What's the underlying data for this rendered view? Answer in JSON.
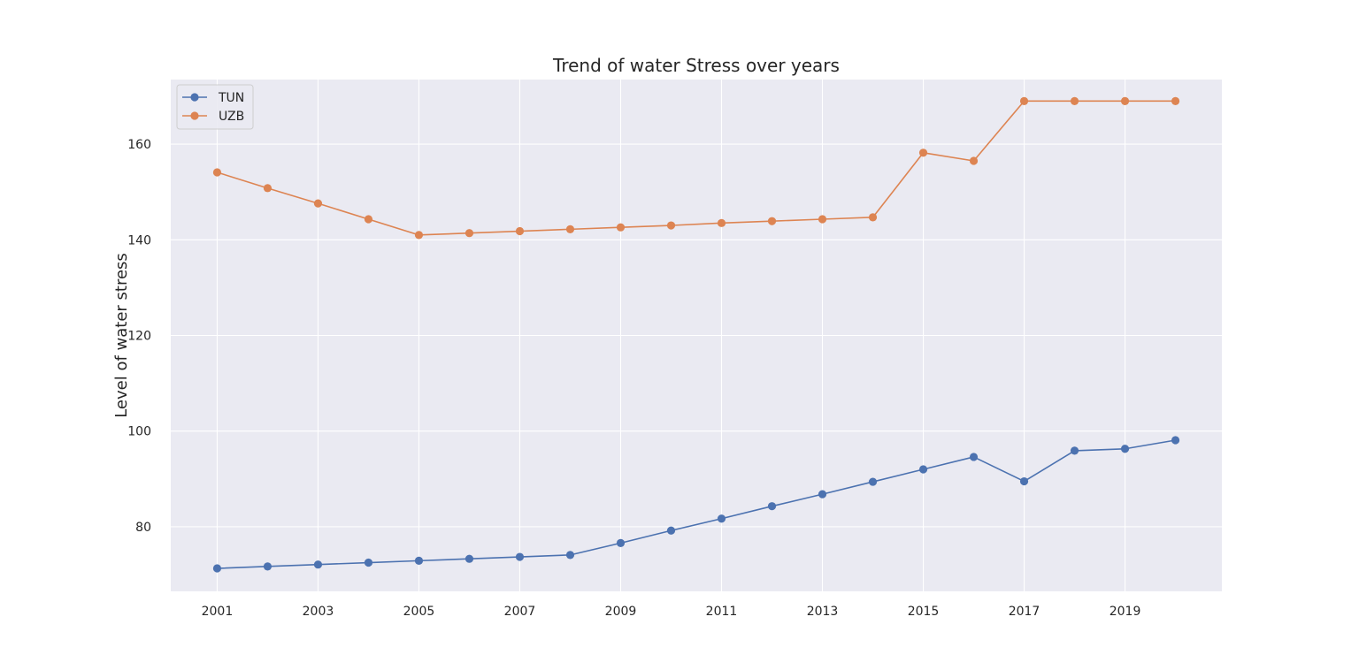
{
  "colors": {
    "plot_background": "#EAEAF2",
    "grid": "#FFFFFF",
    "tun": "#4C72B0",
    "uzb": "#DD8452",
    "text": "#262626"
  },
  "chart_data": {
    "type": "line",
    "title": "Trend of water Stress over years",
    "xlabel": "",
    "ylabel": "Level of water stress",
    "x": [
      2001,
      2002,
      2003,
      2004,
      2005,
      2006,
      2007,
      2008,
      2009,
      2010,
      2011,
      2012,
      2013,
      2014,
      2015,
      2016,
      2017,
      2018,
      2019,
      2020
    ],
    "xlim": [
      2000.08,
      2020.92
    ],
    "ylim": [
      66.5,
      173.5
    ],
    "xticks": [
      2001,
      2003,
      2005,
      2007,
      2009,
      2011,
      2013,
      2015,
      2017,
      2019
    ],
    "yticks": [
      80,
      100,
      120,
      140,
      160
    ],
    "grid": true,
    "legend_position": "top-left",
    "series": [
      {
        "name": "TUN",
        "color": "#4C72B0",
        "marker": "circle",
        "values": [
          71.3,
          71.7,
          72.1,
          72.5,
          72.9,
          73.3,
          73.7,
          74.1,
          76.6,
          79.2,
          81.7,
          84.3,
          86.8,
          89.4,
          92.0,
          94.6,
          89.5,
          95.9,
          96.3,
          98.1
        ]
      },
      {
        "name": "UZB",
        "color": "#DD8452",
        "marker": "circle",
        "values": [
          154.1,
          150.8,
          147.6,
          144.3,
          141.0,
          141.4,
          141.8,
          142.2,
          142.6,
          143.0,
          143.5,
          143.9,
          144.3,
          144.7,
          158.2,
          156.5,
          169.0,
          169.0,
          169.0,
          169.0
        ]
      }
    ]
  }
}
